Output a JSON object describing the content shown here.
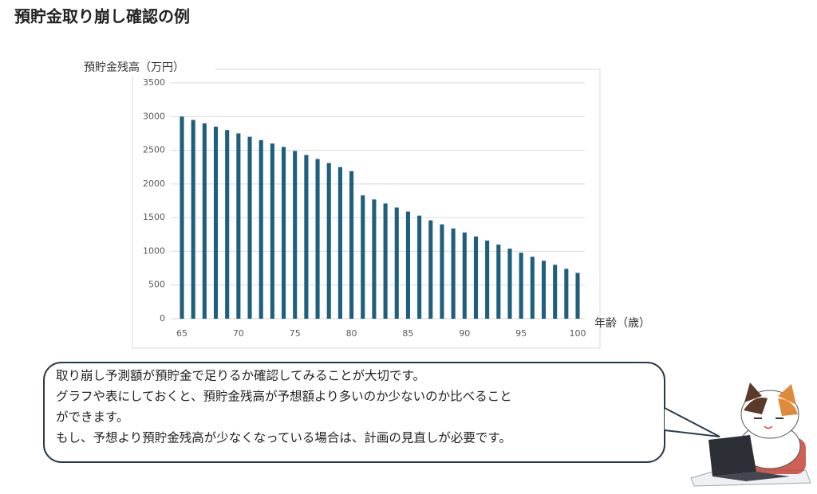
{
  "chart_data": {
    "type": "bar",
    "title": "預貯金取り崩し確認の例",
    "y_label": "預貯金残高（万円）",
    "x_label": "年齢（歳）",
    "x": [
      65,
      66,
      67,
      68,
      69,
      70,
      71,
      72,
      73,
      74,
      75,
      76,
      77,
      78,
      79,
      80,
      81,
      82,
      83,
      84,
      85,
      86,
      87,
      88,
      89,
      90,
      91,
      92,
      93,
      94,
      95,
      96,
      97,
      98,
      99,
      100
    ],
    "values": [
      3000,
      2950,
      2900,
      2850,
      2800,
      2750,
      2700,
      2650,
      2600,
      2550,
      2490,
      2430,
      2370,
      2310,
      2250,
      2190,
      1830,
      1770,
      1710,
      1650,
      1590,
      1530,
      1460,
      1400,
      1340,
      1280,
      1220,
      1160,
      1100,
      1040,
      980,
      920,
      860,
      800,
      740,
      680
    ],
    "color": "#1f5f7e",
    "xlim": [
      65,
      100
    ],
    "xticks": [
      65,
      70,
      75,
      80,
      85,
      90,
      95,
      100
    ],
    "ylim": [
      0,
      3500
    ],
    "yticks": [
      0,
      500,
      1000,
      1500,
      2000,
      2500,
      3000,
      3500
    ],
    "grid": true,
    "annotation": [
      "取り崩し予測額が預貯金で足りるか確認してみることが大切です。",
      "グラフや表にしておくと、預貯金残高が予想額より多いのか少ないのか比べること",
      "ができます。",
      "もし、予想より預貯金残高が少なくなっている場合は、計画の見直しが必要です。"
    ]
  }
}
